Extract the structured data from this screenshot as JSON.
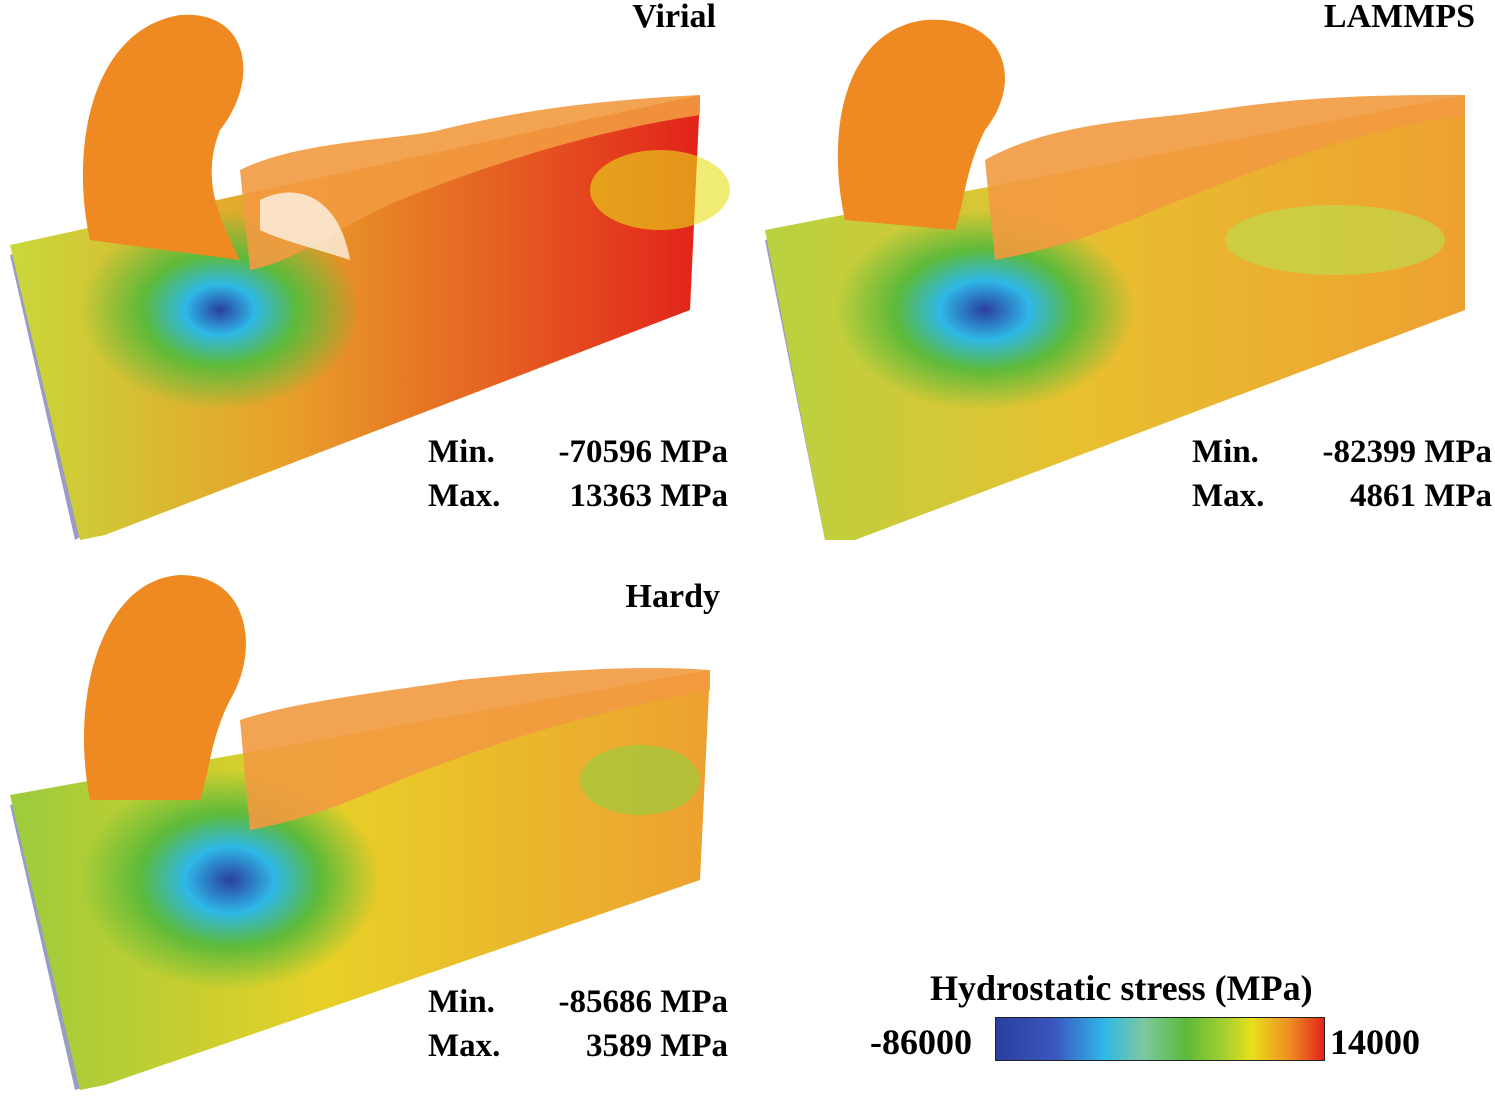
{
  "panels": [
    {
      "id": "virial",
      "title": "Virial",
      "min_label": "Min.",
      "min_value": "-70596 MPa",
      "max_label": "Max.",
      "max_value": "13363 MPa"
    },
    {
      "id": "lammps",
      "title": "LAMMPS",
      "min_label": "Min.",
      "min_value": "-82399 MPa",
      "max_label": "Max.",
      "max_value": "4861 MPa"
    },
    {
      "id": "hardy",
      "title": "Hardy",
      "min_label": "Min.",
      "min_value": "-85686 MPa",
      "max_label": "Max.",
      "max_value": "3589 MPa"
    }
  ],
  "legend": {
    "title": "Hydrostatic stress (MPa)",
    "min": "-86000",
    "max": "14000"
  },
  "colors": {
    "blue": "#2a3f9e",
    "cyan": "#2fb8e8",
    "green": "#5cba3a",
    "yellow": "#e8e01a",
    "orange": "#ef8a22",
    "red": "#e2231a",
    "side_face": "#9a9cc4"
  }
}
